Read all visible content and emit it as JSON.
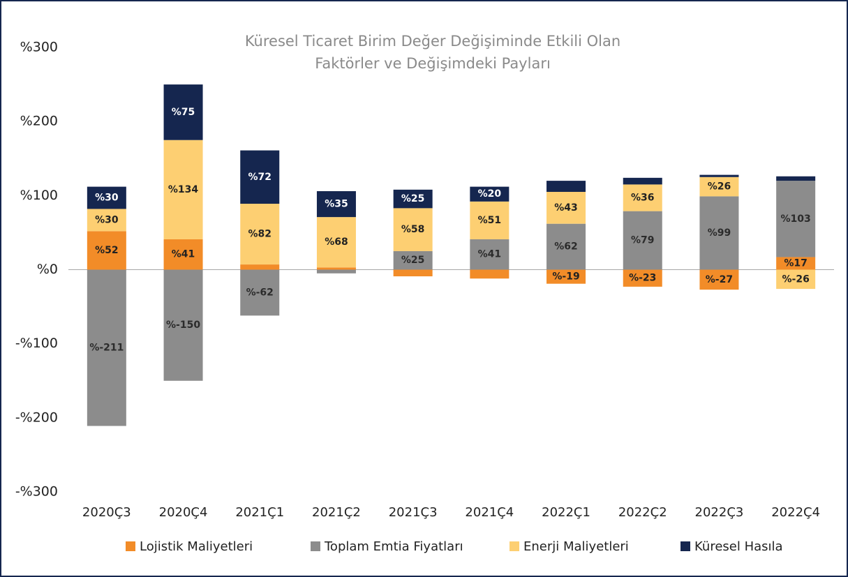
{
  "chart_data": {
    "type": "stacked_bar",
    "title": [
      "Küresel Ticaret Birim Değer Değişiminde Etkili Olan",
      "Faktörler ve Değişimdeki Payları"
    ],
    "categories": [
      "2020Ç3",
      "2020Ç4",
      "2021Ç1",
      "2021Ç2",
      "2021Ç3",
      "2021Ç4",
      "2022Ç1",
      "2022Ç2",
      "2022Ç3",
      "2022Ç4"
    ],
    "series": [
      {
        "name": "Lojistik Maliyetleri",
        "color": "#f28c28",
        "label_color": "#222222",
        "values": [
          52,
          41,
          7,
          3,
          -9,
          -12,
          -19,
          -23,
          -27,
          17
        ],
        "value_labels": [
          "%52",
          "%41",
          null,
          null,
          null,
          null,
          "%-19",
          "%-23",
          "%-27",
          "%17"
        ]
      },
      {
        "name": "Toplam Emtia Fiyatları",
        "color": "#8c8c8c",
        "label_color": "#2b2b2b",
        "values": [
          -211,
          -150,
          -62,
          -5,
          25,
          41,
          62,
          79,
          99,
          103
        ],
        "value_labels": [
          "%-211",
          "%-150",
          "%-62",
          null,
          "%25",
          "%41",
          "%62",
          "%79",
          "%99",
          "%103"
        ]
      },
      {
        "name": "Enerji Maliyetleri",
        "color": "#fdcf72",
        "label_color": "#222222",
        "values": [
          30,
          134,
          82,
          68,
          58,
          51,
          43,
          36,
          26,
          -26
        ],
        "value_labels": [
          "%30",
          "%134",
          "%82",
          "%68",
          "%58",
          "%51",
          "%43",
          "%36",
          "%26",
          "%-26"
        ]
      },
      {
        "name": "Küresel Hasıla",
        "color": "#15264f",
        "label_color": "#ffffff",
        "values": [
          30,
          75,
          72,
          35,
          25,
          20,
          15,
          9,
          3,
          6
        ],
        "value_labels": [
          "%30",
          "%75",
          "%72",
          "%35",
          "%25",
          "%20",
          null,
          null,
          null,
          null
        ]
      }
    ],
    "ylim": [
      -300,
      300
    ],
    "yticks": [
      {
        "value": -300,
        "label": "-%300"
      },
      {
        "value": -200,
        "label": "-%200"
      },
      {
        "value": -100,
        "label": "-%100"
      },
      {
        "value": 0,
        "label": "%0"
      },
      {
        "value": 100,
        "label": "%100"
      },
      {
        "value": 200,
        "label": "%200"
      },
      {
        "value": 300,
        "label": "%300"
      }
    ],
    "legend": "bottom"
  }
}
